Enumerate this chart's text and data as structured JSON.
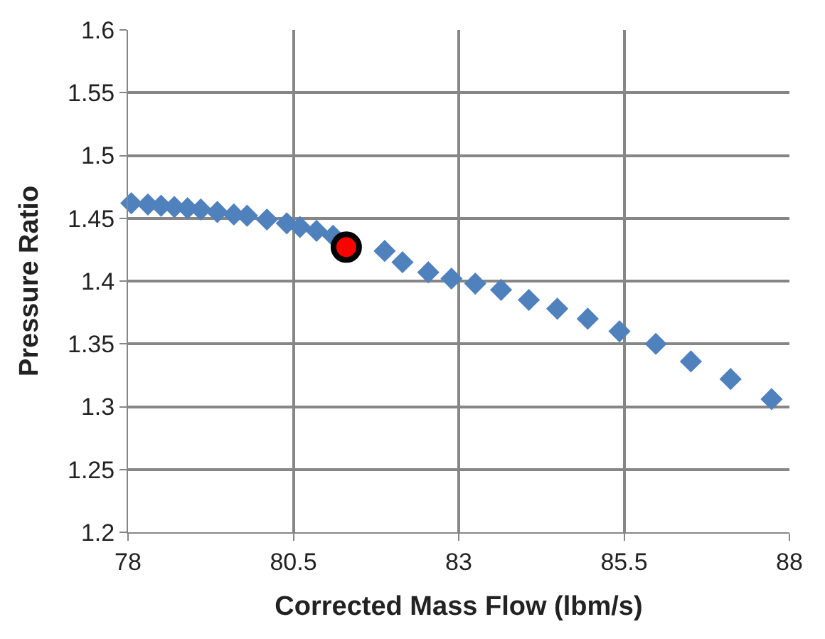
{
  "chart_data": {
    "type": "scatter",
    "xlabel": "Corrected Mass Flow (lbm/s)",
    "ylabel": "Pressure Ratio",
    "xlim": [
      78,
      88
    ],
    "xticks": [
      78,
      80.5,
      83,
      85.5,
      88
    ],
    "ylim": [
      1.2,
      1.6
    ],
    "yticks": [
      1.2,
      1.25,
      1.3,
      1.35,
      1.4,
      1.45,
      1.5,
      1.55,
      1.6
    ],
    "grid": true,
    "series": [
      {
        "color": "#4f81bd",
        "marker": "diamond",
        "x": [
          78.05,
          78.3,
          78.5,
          78.7,
          78.9,
          79.1,
          79.35,
          79.6,
          79.8,
          80.1,
          80.4,
          80.6,
          80.85,
          81.1,
          81.35,
          81.88,
          82.15,
          82.54,
          82.89,
          83.25,
          83.64,
          84.06,
          84.49,
          84.95,
          85.43,
          85.98,
          86.51,
          87.11,
          87.73
        ],
        "values": [
          1.462,
          1.461,
          1.46,
          1.459,
          1.458,
          1.457,
          1.455,
          1.453,
          1.452,
          1.449,
          1.446,
          1.443,
          1.44,
          1.436,
          null,
          1.424,
          1.415,
          1.407,
          1.402,
          1.398,
          1.393,
          1.385,
          1.378,
          1.37,
          1.36,
          1.35,
          1.336,
          1.322,
          1.306
        ]
      },
      {
        "color": "#ff0000",
        "marker": "circle",
        "x": [
          81.3
        ],
        "values": [
          1.427
        ]
      }
    ]
  }
}
